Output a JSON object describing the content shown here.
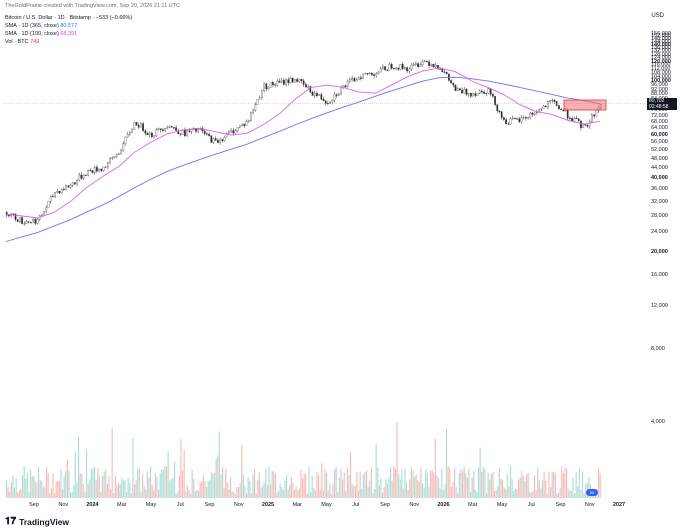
{
  "header": {
    "attribution": "TheGoldPrairie created with TradingView.com, Sep 20, 2026 21:11 UTC"
  },
  "legend": {
    "title": "Bitcoin / U.S. Dollar · 1D · Bitstamp · −533 (−0.66%)",
    "sma365_label": "SMA · 1D (365, close)",
    "sma365_value": "80,577",
    "sma100_label": "SMA · 1D (100, close)",
    "sma100_value": "68,391",
    "vol_label": "Vol · BTC",
    "vol_value": "749"
  },
  "axis": {
    "currency": "USD",
    "y_ticks": [
      {
        "label": "156,000",
        "bold": false
      },
      {
        "label": "152,000",
        "bold": false
      },
      {
        "label": "148,000",
        "bold": false
      },
      {
        "label": "144,000",
        "bold": false
      },
      {
        "label": "140,000",
        "bold": true
      },
      {
        "label": "136,000",
        "bold": false
      },
      {
        "label": "132,000",
        "bold": false
      },
      {
        "label": "128,000",
        "bold": false
      },
      {
        "label": "124,000",
        "bold": false
      },
      {
        "label": "120,000",
        "bold": true
      },
      {
        "label": "116,000",
        "bold": false
      },
      {
        "label": "112,000",
        "bold": false
      },
      {
        "label": "108,000",
        "bold": false
      },
      {
        "label": "104,000",
        "bold": false
      },
      {
        "label": "100,000",
        "bold": true
      },
      {
        "label": "96,000",
        "bold": false
      },
      {
        "label": "92,000",
        "bold": false
      },
      {
        "label": "88,000",
        "bold": false
      },
      {
        "label": "84,000",
        "bold": false
      },
      {
        "label": "80,000",
        "bold": true
      },
      {
        "label": "76,000",
        "bold": false
      },
      {
        "label": "72,000",
        "bold": false
      },
      {
        "label": "68,000",
        "bold": false
      },
      {
        "label": "64,000",
        "bold": false
      },
      {
        "label": "60,000",
        "bold": true
      },
      {
        "label": "56,000",
        "bold": false
      },
      {
        "label": "52,000",
        "bold": false
      },
      {
        "label": "48,000",
        "bold": false
      },
      {
        "label": "44,000",
        "bold": false
      },
      {
        "label": "40,000",
        "bold": true
      },
      {
        "label": "36,000",
        "bold": false
      },
      {
        "label": "32,000",
        "bold": false
      },
      {
        "label": "28,000",
        "bold": false
      },
      {
        "label": "24,000",
        "bold": false
      },
      {
        "label": "20,000",
        "bold": true
      },
      {
        "label": "16,000",
        "bold": false
      },
      {
        "label": "12,000",
        "bold": false
      },
      {
        "label": "8,000",
        "bold": false
      },
      {
        "label": "4,000",
        "bold": false
      }
    ],
    "x_ticks": [
      {
        "label": "Sep",
        "bold": false
      },
      {
        "label": "Nov",
        "bold": false
      },
      {
        "label": "2024",
        "bold": true
      },
      {
        "label": "Mar",
        "bold": false
      },
      {
        "label": "May",
        "bold": false
      },
      {
        "label": "Jul",
        "bold": false
      },
      {
        "label": "Sep",
        "bold": false
      },
      {
        "label": "Nov",
        "bold": false
      },
      {
        "label": "2025",
        "bold": true
      },
      {
        "label": "Mar",
        "bold": false
      },
      {
        "label": "May",
        "bold": false
      },
      {
        "label": "Jul",
        "bold": false
      },
      {
        "label": "Sep",
        "bold": false
      },
      {
        "label": "Nov",
        "bold": false
      },
      {
        "label": "2026",
        "bold": true
      },
      {
        "label": "Mar",
        "bold": false
      },
      {
        "label": "May",
        "bold": false
      },
      {
        "label": "Jul",
        "bold": false
      },
      {
        "label": "Sep",
        "bold": false
      },
      {
        "label": "Nov",
        "bold": false
      },
      {
        "label": "2027",
        "bold": true
      }
    ]
  },
  "price_tag": {
    "price": "80,702",
    "countdown": "02:48:58"
  },
  "badge": {
    "text": "50"
  },
  "footer": {
    "brand": "TradingView"
  },
  "colors": {
    "up": "#2f2f2f",
    "down": "#2f2f2f",
    "sma365": "#7b6cf6",
    "sma100": "#e060e8",
    "vol_up": "#a8dcd3",
    "vol_down": "#f7b7b7",
    "highlight_fill": "#f26d6d",
    "highlight_stroke": "#d83a3a"
  },
  "chart_data": {
    "type": "line",
    "title": "Bitcoin / U.S. Dollar · 1D · Bitstamp",
    "ylim": [
      2000,
      160000
    ],
    "y_scale": "log",
    "x": [
      "2023-08",
      "2023-09",
      "2023-10",
      "2023-11",
      "2023-12",
      "2024-01",
      "2024-02",
      "2024-03",
      "2024-04",
      "2024-05",
      "2024-06",
      "2024-07",
      "2024-08",
      "2024-09",
      "2024-10",
      "2024-11",
      "2024-12",
      "2025-01",
      "2025-02",
      "2025-03",
      "2025-04",
      "2025-05",
      "2025-06",
      "2025-07",
      "2025-08",
      "2025-09",
      "2025-10",
      "2025-11",
      "2025-12",
      "2026-01",
      "2026-02",
      "2026-03",
      "2026-04",
      "2026-05",
      "2026-06",
      "2026-07",
      "2026-08",
      "2026-09"
    ],
    "series": [
      {
        "name": "Bitcoin / U.S. Dollar",
        "values": [
          29000,
          26500,
          27000,
          35000,
          37500,
          42500,
          44000,
          51000,
          68000,
          60000,
          66000,
          61000,
          63000,
          56000,
          62000,
          68000,
          95000,
          98000,
          102000,
          90000,
          82000,
          95000,
          105000,
          108000,
          116000,
          112000,
          121000,
          114000,
          91000,
          89000,
          92000,
          68000,
          69000,
          75000,
          82000,
          72000,
          64000,
          80700
        ]
      },
      {
        "name": "SMA · 1D (365, close)",
        "values": [
          22000,
          23000,
          24000,
          25500,
          27000,
          29000,
          31000,
          33500,
          36500,
          39500,
          42500,
          45000,
          47500,
          50000,
          52500,
          55000,
          58500,
          62000,
          66000,
          70000,
          74000,
          78000,
          82000,
          86500,
          91000,
          95500,
          100000,
          103000,
          103500,
          102000,
          100000,
          97000,
          94000,
          91000,
          88000,
          85000,
          83000,
          80577
        ]
      },
      {
        "name": "SMA · 1D (100, close)",
        "values": [
          28500,
          28000,
          27500,
          29000,
          32000,
          36500,
          40500,
          44500,
          51000,
          56000,
          60500,
          63000,
          64000,
          62000,
          60000,
          61000,
          66000,
          73000,
          84000,
          94000,
          96000,
          94000,
          90000,
          89000,
          96000,
          104000,
          110000,
          113000,
          109000,
          100000,
          94000,
          88000,
          80000,
          75000,
          73000,
          69000,
          66500,
          68391
        ]
      }
    ]
  }
}
